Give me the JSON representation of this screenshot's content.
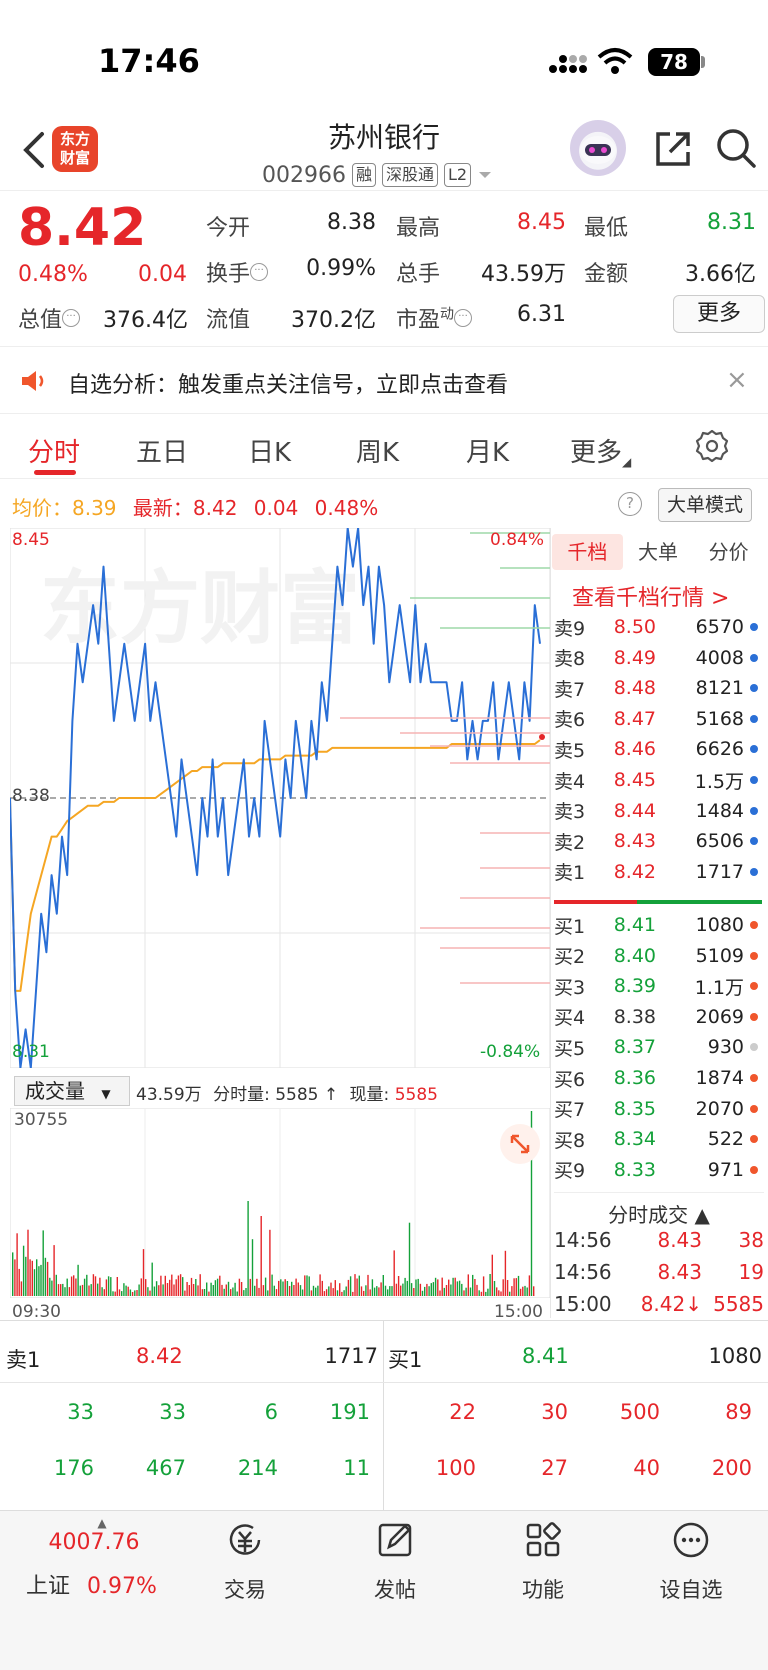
{
  "status": {
    "time": "17:46",
    "battery": "78"
  },
  "header": {
    "logo": "东方财富",
    "name": "苏州银行",
    "code": "002966",
    "tags": [
      "融",
      "深股通",
      "L2"
    ]
  },
  "quote": {
    "price": "8.42",
    "change_pct": "0.48%",
    "change_val": "0.04",
    "open_label": "今开",
    "open": "8.38",
    "high_label": "最高",
    "high": "8.45",
    "low_label": "最低",
    "low": "8.31",
    "turnover_label": "换手",
    "turnover": "0.99%",
    "volume_label": "总手",
    "volume": "43.59万",
    "amount_label": "金额",
    "amount": "3.66亿",
    "mktcap_label": "总值",
    "mktcap": "376.4亿",
    "float_label": "流值",
    "float": "370.2亿",
    "pe_label": "市盈",
    "pe_sup": "动",
    "pe": "6.31",
    "more": "更多"
  },
  "notice": {
    "text": "自选分析：触发重点关注信号，立即点击查看",
    "close": "×"
  },
  "tabs": [
    "分时",
    "五日",
    "日K",
    "周K",
    "月K",
    "更多"
  ],
  "avg_row": {
    "avg_label": "均价：",
    "avg": "8.39",
    "last_label": "最新：",
    "last": "8.42",
    "chg": "0.04",
    "pct": "0.48%",
    "help": "?",
    "mode_button": "大单模式"
  },
  "chart_data": {
    "type": "line",
    "y_top_label": "8.45",
    "y_mid_label": "8.38",
    "y_bottom_label": "8.31",
    "pct_top_label": "0.84%",
    "pct_bottom_label": "-0.84%",
    "ylim": [
      8.31,
      8.45
    ],
    "prev_close": 8.38,
    "series": [
      {
        "values": [
          8.38,
          8.33,
          8.31,
          8.32,
          8.31,
          8.33,
          8.35,
          8.34,
          8.36,
          8.35,
          8.37,
          8.36,
          8.4,
          8.42,
          8.41,
          8.42,
          8.43,
          8.42,
          8.44,
          8.42,
          8.4,
          8.41,
          8.42,
          8.41,
          8.4,
          8.41,
          8.42,
          8.4,
          8.41,
          8.4,
          8.39,
          8.38,
          8.37,
          8.39,
          8.38,
          8.37,
          8.36,
          8.38,
          8.37,
          8.39,
          8.37,
          8.38,
          8.36,
          8.37,
          8.38,
          8.39,
          8.37,
          8.38,
          8.37,
          8.4,
          8.39,
          8.38,
          8.37,
          8.39,
          8.38,
          8.4,
          8.39,
          8.38,
          8.4,
          8.39,
          8.41,
          8.4,
          8.42,
          8.44,
          8.43,
          8.45,
          8.44,
          8.45,
          8.43,
          8.44,
          8.42,
          8.44,
          8.43,
          8.41,
          8.42,
          8.43,
          8.42,
          8.41,
          8.43,
          8.41,
          8.42,
          8.41,
          8.41,
          8.41,
          8.41,
          8.4,
          8.4,
          8.41,
          8.39,
          8.4,
          8.39,
          8.4,
          8.4,
          8.41,
          8.39,
          8.4,
          8.41,
          8.4,
          8.39,
          8.41,
          8.4,
          8.43,
          8.42
        ]
      },
      {
        "values": [
          8.38,
          8.33,
          8.33,
          8.34,
          8.35,
          8.355,
          8.36,
          8.365,
          8.37,
          8.37,
          8.372,
          8.374,
          8.375,
          8.376,
          8.377,
          8.378,
          8.378,
          8.378,
          8.379,
          8.379,
          8.379,
          8.38,
          8.38,
          8.38,
          8.38,
          8.38,
          8.38,
          8.38,
          8.38,
          8.381,
          8.382,
          8.383,
          8.384,
          8.385,
          8.386,
          8.387,
          8.387,
          8.388,
          8.388,
          8.388,
          8.388,
          8.389,
          8.389,
          8.389,
          8.389,
          8.389,
          8.389,
          8.389,
          8.39,
          8.39,
          8.39,
          8.39,
          8.39,
          8.391,
          8.391,
          8.391,
          8.391,
          8.391,
          8.391,
          8.392,
          8.392,
          8.392,
          8.393,
          8.393,
          8.393,
          8.393,
          8.393,
          8.393,
          8.393,
          8.393,
          8.393,
          8.393,
          8.393,
          8.393,
          8.393,
          8.393,
          8.393,
          8.393,
          8.393,
          8.393,
          8.393,
          8.393,
          8.393,
          8.393,
          8.393,
          8.394,
          8.394,
          8.394,
          8.394,
          8.394,
          8.394,
          8.394,
          8.394,
          8.394,
          8.394,
          8.394,
          8.394,
          8.394,
          8.394,
          8.394,
          8.394,
          8.394,
          8.395
        ]
      }
    ]
  },
  "volume": {
    "selector": "成交量",
    "total": "43.59万",
    "tick_label": "分时量:",
    "tick": "5585",
    "arrow": "↑",
    "now_label": "现量:",
    "now": "5585",
    "max_label": "30755",
    "start_time": "09:30",
    "end_time": "15:00"
  },
  "orderbook": {
    "tabs": [
      "千档",
      "大单",
      "分价"
    ],
    "link": "查看千档行情 >",
    "asks": [
      {
        "label": "卖9",
        "price": "8.50",
        "vol": "6570"
      },
      {
        "label": "卖8",
        "price": "8.49",
        "vol": "4008"
      },
      {
        "label": "卖7",
        "price": "8.48",
        "vol": "8121"
      },
      {
        "label": "卖6",
        "price": "8.47",
        "vol": "5168"
      },
      {
        "label": "卖5",
        "price": "8.46",
        "vol": "6626"
      },
      {
        "label": "卖4",
        "price": "8.45",
        "vol": "1.5万"
      },
      {
        "label": "卖3",
        "price": "8.44",
        "vol": "1484"
      },
      {
        "label": "卖2",
        "price": "8.43",
        "vol": "6506"
      },
      {
        "label": "卖1",
        "price": "8.42",
        "vol": "1717"
      }
    ],
    "bids": [
      {
        "label": "买1",
        "price": "8.41",
        "vol": "1080",
        "pc": "green"
      },
      {
        "label": "买2",
        "price": "8.40",
        "vol": "5109",
        "pc": "green"
      },
      {
        "label": "买3",
        "price": "8.39",
        "vol": "1.1万",
        "pc": "green"
      },
      {
        "label": "买4",
        "price": "8.38",
        "vol": "2069",
        "pc": "black"
      },
      {
        "label": "买5",
        "price": "8.37",
        "vol": "930",
        "pc": "green"
      },
      {
        "label": "买6",
        "price": "8.36",
        "vol": "1874",
        "pc": "green"
      },
      {
        "label": "买7",
        "price": "8.35",
        "vol": "2070",
        "pc": "green"
      },
      {
        "label": "买8",
        "price": "8.34",
        "vol": "522",
        "pc": "green"
      },
      {
        "label": "买9",
        "price": "8.33",
        "vol": "971",
        "pc": "green"
      }
    ],
    "ticks_header": "分时成交 ▲",
    "ticks": [
      {
        "time": "14:56",
        "price": "8.43",
        "vol": "38"
      },
      {
        "time": "14:56",
        "price": "8.43",
        "vol": "19"
      },
      {
        "time": "15:00",
        "price": "8.42↓",
        "vol": "5585"
      }
    ]
  },
  "bottom": {
    "sell1_label": "卖1",
    "sell1_price": "8.42",
    "sell1_vol": "1717",
    "buy1_label": "买1",
    "buy1_price": "8.41",
    "buy1_vol": "1080",
    "sell_q1": [
      "33",
      "33",
      "6",
      "191"
    ],
    "sell_q2": [
      "176",
      "467",
      "214",
      "11"
    ],
    "buy_q1": [
      "22",
      "30",
      "500",
      "89"
    ],
    "buy_q2": [
      "100",
      "27",
      "40",
      "200"
    ]
  },
  "tabbar": {
    "index_value": "4007.76",
    "index_name": "上证",
    "index_pct": "0.97%",
    "items": [
      "交易",
      "发帖",
      "功能",
      "设自选"
    ]
  }
}
